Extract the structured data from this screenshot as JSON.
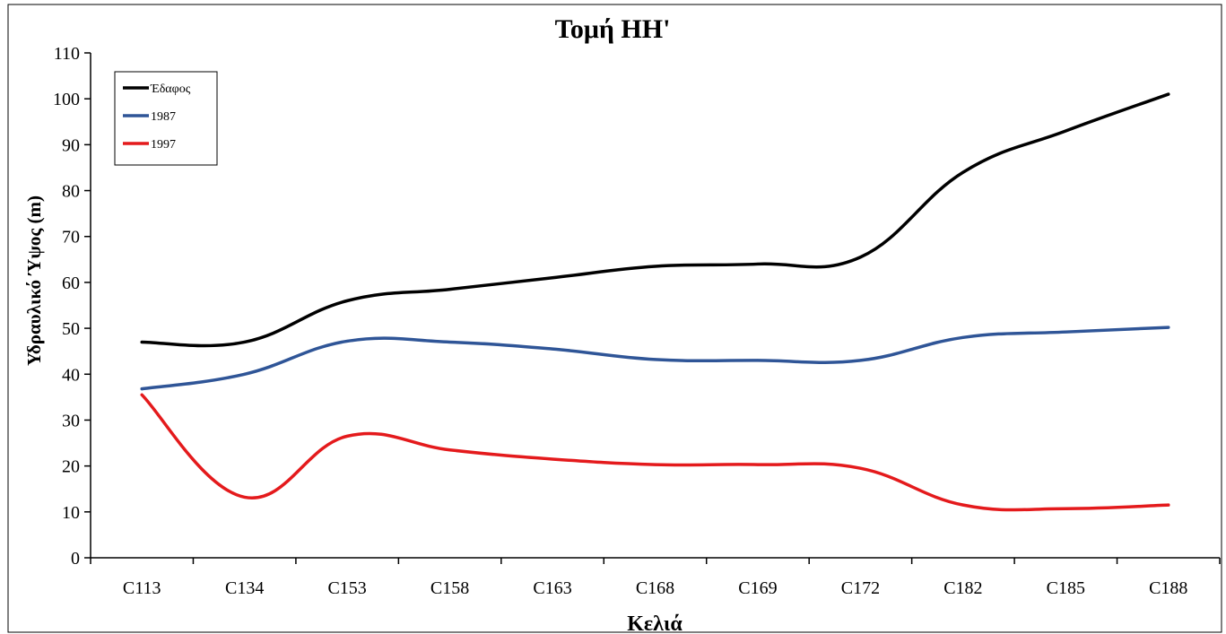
{
  "chart_data": {
    "type": "line",
    "title": "Τομή ΗΗ'",
    "xlabel": "Κελιά",
    "ylabel": "Υδραυλικό Ύψος (m)",
    "ylim": [
      0,
      110
    ],
    "yticks": [
      0,
      10,
      20,
      30,
      40,
      50,
      60,
      70,
      80,
      90,
      100,
      110
    ],
    "categories": [
      "C113",
      "C134",
      "C153",
      "C158",
      "C163",
      "C168",
      "C169",
      "C172",
      "C182",
      "C185",
      "C188"
    ],
    "legend_position": "top-left",
    "grid": false,
    "series": [
      {
        "name": "Έδαφος",
        "color": "#000000",
        "values": [
          47,
          47,
          56,
          58.5,
          61,
          63.5,
          64,
          65.5,
          84,
          93,
          101
        ]
      },
      {
        "name": "1987",
        "color": "#2f5597",
        "values": [
          36.8,
          40,
          47.2,
          47,
          45.5,
          43.2,
          43,
          43,
          48,
          49.2,
          50.2
        ]
      },
      {
        "name": "1997",
        "color": "#e41a1c",
        "values": [
          35.5,
          13.2,
          26.5,
          23.5,
          21.5,
          20.3,
          20.3,
          19.5,
          11.5,
          10.7,
          11.5
        ]
      }
    ]
  }
}
